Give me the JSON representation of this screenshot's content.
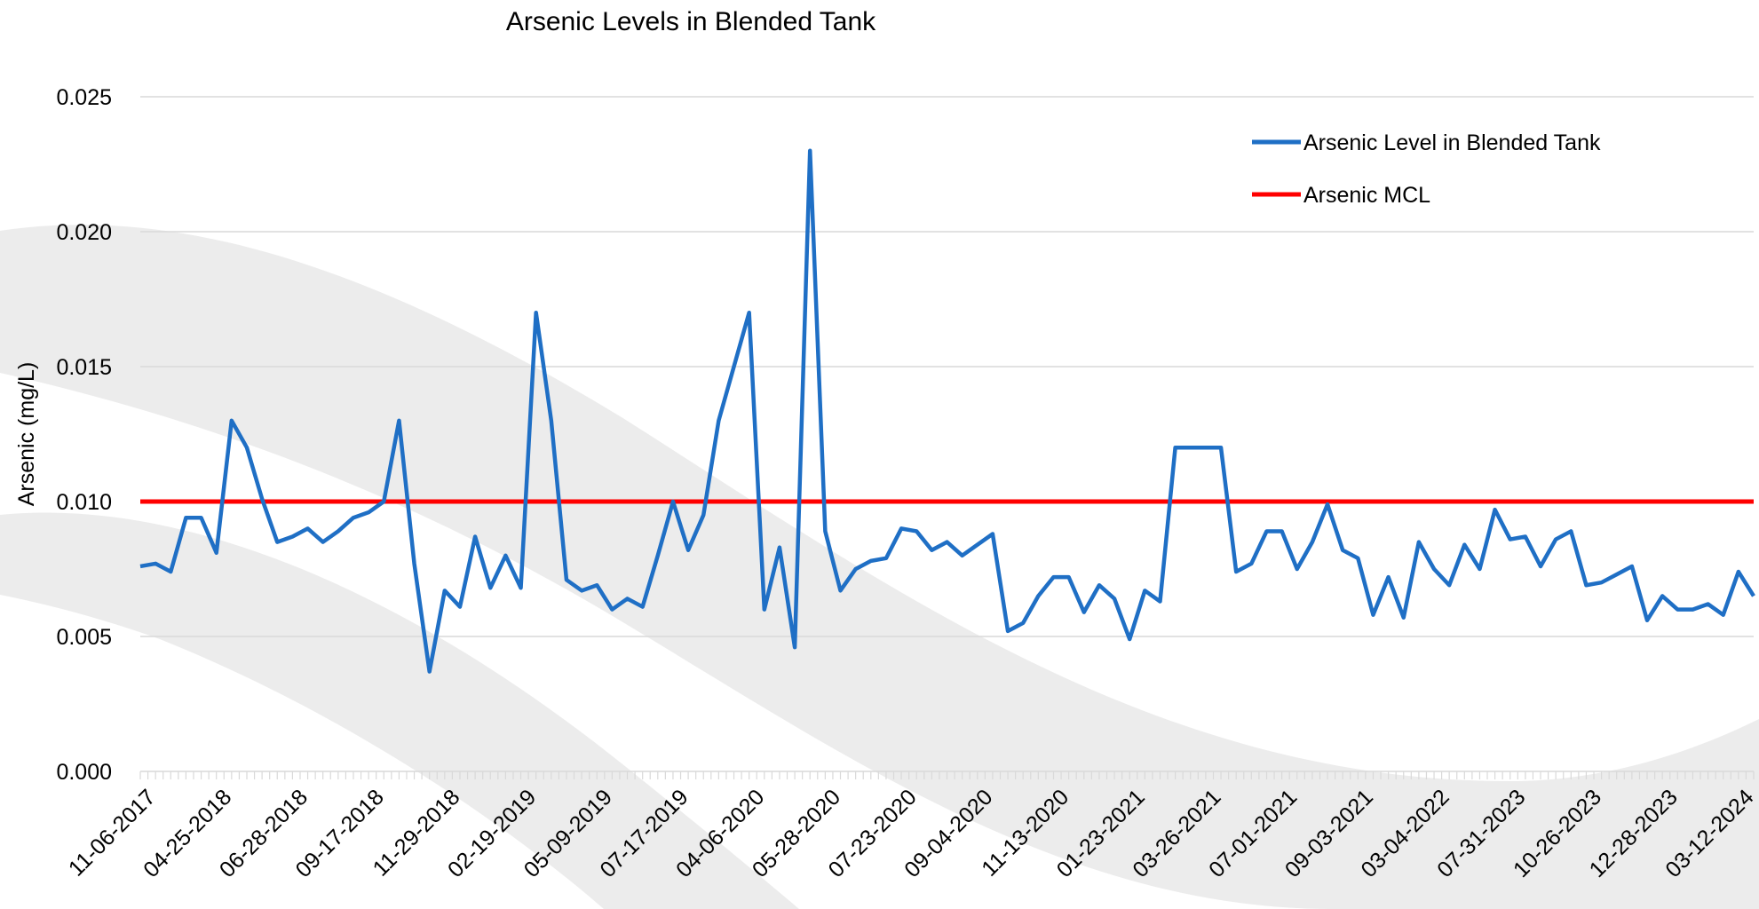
{
  "chart_data": {
    "type": "line",
    "title": "Arsenic Levels in Blended Tank",
    "y_label": "Arsenic (mg/L)",
    "categories": [
      "11-06-2017",
      null,
      null,
      null,
      null,
      "04-25-2018",
      null,
      null,
      null,
      null,
      "06-28-2018",
      null,
      null,
      null,
      null,
      "09-17-2018",
      null,
      null,
      null,
      null,
      "11-29-2018",
      null,
      null,
      null,
      null,
      "02-19-2019",
      null,
      null,
      null,
      null,
      "05-09-2019",
      null,
      null,
      null,
      null,
      "07-17-2019",
      null,
      null,
      null,
      null,
      "04-06-2020",
      null,
      null,
      null,
      null,
      "05-28-2020",
      null,
      null,
      null,
      null,
      "07-23-2020",
      null,
      null,
      null,
      null,
      "09-04-2020",
      null,
      null,
      null,
      null,
      "11-13-2020",
      null,
      null,
      null,
      null,
      "01-23-2021",
      null,
      null,
      null,
      null,
      "03-26-2021",
      null,
      null,
      null,
      null,
      "07-01-2021",
      null,
      null,
      null,
      null,
      "09-03-2021",
      null,
      null,
      null,
      null,
      "03-04-2022",
      null,
      null,
      null,
      null,
      "07-31-2023",
      null,
      null,
      null,
      null,
      "10-26-2023",
      null,
      null,
      null,
      null,
      "12-28-2023",
      null,
      null,
      null,
      null,
      "03-12-2024",
      null
    ],
    "series": [
      {
        "name": "Arsenic Level in Blended Tank",
        "color": "#1f6fc5",
        "values": [
          0.0076,
          0.0077,
          0.0074,
          0.0094,
          0.0094,
          0.0081,
          0.013,
          0.012,
          0.0101,
          0.0085,
          0.0087,
          0.009,
          0.0085,
          0.0089,
          0.0094,
          0.0096,
          0.01,
          0.013,
          0.0077,
          0.0037,
          0.0067,
          0.0061,
          0.0087,
          0.0068,
          0.008,
          0.0068,
          0.017,
          0.013,
          0.0071,
          0.0067,
          0.0069,
          0.006,
          0.0064,
          0.0061,
          0.008,
          0.01,
          0.0082,
          0.0095,
          0.013,
          0.015,
          0.017,
          0.006,
          0.0083,
          0.0046,
          0.023,
          0.0089,
          0.0067,
          0.0075,
          0.0078,
          0.0079,
          0.009,
          0.0089,
          0.0082,
          0.0085,
          0.008,
          0.0084,
          0.0088,
          0.0052,
          0.0055,
          0.0065,
          0.0072,
          0.0072,
          0.0059,
          0.0069,
          0.0064,
          0.0049,
          0.0067,
          0.0063,
          0.012,
          0.012,
          0.012,
          0.012,
          0.0074,
          0.0077,
          0.0089,
          0.0089,
          0.0075,
          0.0085,
          0.0099,
          0.0082,
          0.0079,
          0.0058,
          0.0072,
          0.0057,
          0.0085,
          0.0075,
          0.0069,
          0.0084,
          0.0075,
          0.0097,
          0.0086,
          0.0087,
          0.0076,
          0.0086,
          0.0089,
          0.0069,
          0.007,
          0.0073,
          0.0076,
          0.0056,
          0.0065,
          0.006,
          0.006,
          0.0062,
          0.0058,
          0.0074,
          0.0065
        ]
      },
      {
        "name": "Arsenic MCL",
        "color": "#ff0000",
        "values": [
          0.01,
          0.01,
          0.01,
          0.01,
          0.01,
          0.01,
          0.01,
          0.01,
          0.01,
          0.01,
          0.01,
          0.01,
          0.01,
          0.01,
          0.01,
          0.01,
          0.01,
          0.01,
          0.01,
          0.01,
          0.01,
          0.01,
          0.01,
          0.01,
          0.01,
          0.01,
          0.01,
          0.01,
          0.01,
          0.01,
          0.01,
          0.01,
          0.01,
          0.01,
          0.01,
          0.01,
          0.01,
          0.01,
          0.01,
          0.01,
          0.01,
          0.01,
          0.01,
          0.01,
          0.01,
          0.01,
          0.01,
          0.01,
          0.01,
          0.01,
          0.01,
          0.01,
          0.01,
          0.01,
          0.01,
          0.01,
          0.01,
          0.01,
          0.01,
          0.01,
          0.01,
          0.01,
          0.01,
          0.01,
          0.01,
          0.01,
          0.01,
          0.01,
          0.01,
          0.01,
          0.01,
          0.01,
          0.01,
          0.01,
          0.01,
          0.01,
          0.01,
          0.01,
          0.01,
          0.01,
          0.01,
          0.01,
          0.01,
          0.01,
          0.01,
          0.01,
          0.01,
          0.01,
          0.01,
          0.01,
          0.01,
          0.01,
          0.01,
          0.01,
          0.01,
          0.01,
          0.01,
          0.01,
          0.01,
          0.01,
          0.01,
          0.01,
          0.01,
          0.01,
          0.01,
          0.01,
          0.01
        ]
      }
    ],
    "ylim": [
      0,
      0.025
    ],
    "yticks": [
      {
        "value": 0,
        "label": "0.000"
      },
      0.005,
      {
        "value": 0.01,
        "label": "0.010"
      },
      0.015,
      {
        "value": 0.02,
        "label": "0.020"
      },
      0.025
    ],
    "grid": true,
    "legend": "upper right"
  }
}
